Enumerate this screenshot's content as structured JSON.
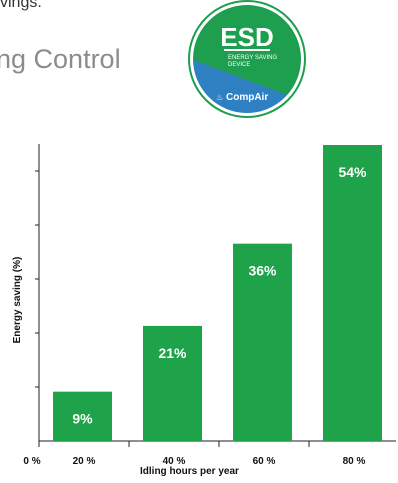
{
  "intro": {
    "fragment": "vings."
  },
  "section": {
    "title_fragment": "ng Control"
  },
  "badge": {
    "title": "ESD",
    "line1": "ENERGY SAVING",
    "line2": "DEVICE",
    "brand": "CompAir",
    "colors": {
      "green": "#1e9e4f",
      "blue": "#2f7fc3",
      "white": "#ffffff"
    }
  },
  "chart_data": {
    "type": "bar",
    "categories": [
      "20 %",
      "40 %",
      "60 %",
      "80 %"
    ],
    "origin_label": "0 %",
    "values": [
      9,
      21,
      36,
      54
    ],
    "data_labels": [
      "9%",
      "21%",
      "36%",
      "54%"
    ],
    "xlabel": "Idling hours per year",
    "ylabel": "Energy saving (%)",
    "ylim": [
      0,
      54
    ],
    "ytick_count": 5,
    "bar_color": "#1fa34a",
    "grid": false,
    "legend": "none"
  }
}
